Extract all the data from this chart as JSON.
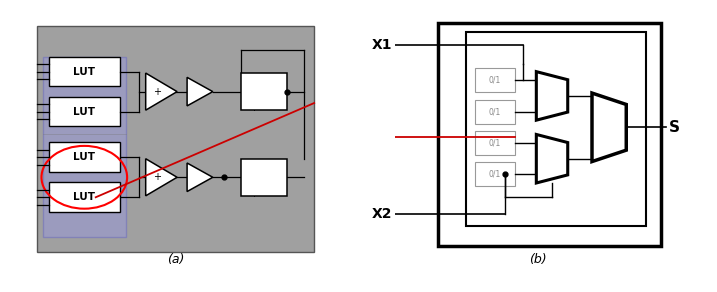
{
  "fig_width": 7.17,
  "fig_height": 2.92,
  "dpi": 100,
  "bg_color": "#ffffff",
  "label_a": "(a)",
  "label_b": "(b)",
  "gray_bg": "#a0a0a0",
  "blue_bg": "#9999cc",
  "lut_fill": "#ffffff",
  "lut_labels": [
    "LUT",
    "LUT",
    "LUT",
    "LUT"
  ],
  "x1_label": "X1",
  "x2_label": "X2",
  "s_label": "S",
  "cell_label": "0/1",
  "red_line_color": "#cc0000",
  "wire_color": "#000000"
}
